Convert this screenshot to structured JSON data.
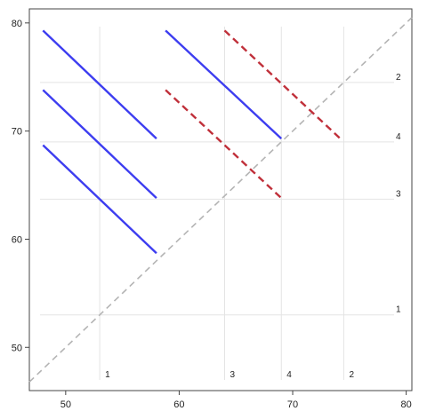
{
  "chart_data": {
    "type": "line",
    "title": "",
    "xlabel": "",
    "ylabel": "",
    "xlim": [
      46.8,
      80.5
    ],
    "ylim": [
      46.0,
      81.3
    ],
    "x_ticks": [
      50,
      60,
      70,
      80
    ],
    "y_ticks": [
      50,
      60,
      70,
      80
    ],
    "x_tick_labels": [
      "50",
      "60",
      "70",
      "80"
    ],
    "y_tick_labels": [
      "50",
      "60",
      "70",
      "80"
    ],
    "legend": "none",
    "grid_lines": {
      "vertical": [
        {
          "x": 53.0,
          "label": "1"
        },
        {
          "x": 64.0,
          "label": "3"
        },
        {
          "x": 69.0,
          "label": "4"
        },
        {
          "x": 74.5,
          "label": "2"
        }
      ],
      "horizontal": [
        {
          "y": 53.0,
          "label": "1"
        },
        {
          "y": 63.7,
          "label": "3"
        },
        {
          "y": 69.0,
          "label": "4"
        },
        {
          "y": 74.5,
          "label": "2"
        }
      ]
    },
    "diagonal": {
      "from": [
        46.8,
        46.8
      ],
      "to": [
        80.5,
        80.5
      ],
      "color": "#b4b4b4",
      "style": "dashed"
    },
    "series": [
      {
        "color": "#3d3df0",
        "style": "solid",
        "x": [
          48.0,
          58.0
        ],
        "y": [
          79.3,
          69.3
        ]
      },
      {
        "color": "#3d3df0",
        "style": "solid",
        "x": [
          48.0,
          58.0
        ],
        "y": [
          73.8,
          63.8
        ]
      },
      {
        "color": "#3d3df0",
        "style": "solid",
        "x": [
          48.0,
          58.0
        ],
        "y": [
          68.7,
          58.7
        ]
      },
      {
        "color": "#3d3df0",
        "style": "solid",
        "x": [
          58.8,
          69.0
        ],
        "y": [
          79.3,
          69.3
        ]
      },
      {
        "color": "#c0303a",
        "style": "dashed",
        "x": [
          64.0,
          74.2
        ],
        "y": [
          79.3,
          69.3
        ]
      },
      {
        "color": "#c0303a",
        "style": "dashed",
        "x": [
          58.8,
          69.0
        ],
        "y": [
          73.8,
          63.8
        ]
      }
    ]
  }
}
